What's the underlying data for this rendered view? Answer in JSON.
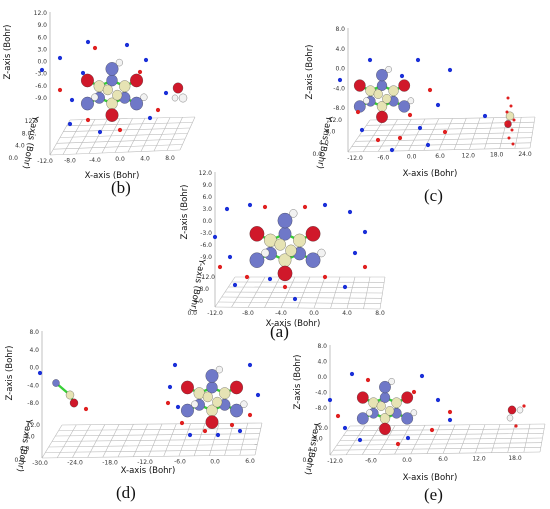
{
  "figure": {
    "panels": [
      {
        "id": "b",
        "caption": "(b)",
        "x_axis_label": "X-axis (Bohr)",
        "y_axis_label": "Y-axis (Bohr)",
        "z_axis_label": "Z-axis (Bohr)",
        "x_ticks": [
          "-12.0",
          "-8.0",
          "-4.0",
          "0.0",
          "4.0",
          "8.0"
        ],
        "y_ticks": [
          "0.0",
          "4.0",
          "8.0",
          "12.0"
        ],
        "z_ticks": [
          "12.0",
          "9.0",
          "6.0",
          "3.0",
          "0.0",
          "-3.0",
          "-6.0",
          "-9.0"
        ]
      },
      {
        "id": "c",
        "caption": "(c)",
        "x_axis_label": "X-axis (Bohr)",
        "y_axis_label": "Y-axis (Bohr)",
        "z_axis_label": "Z-axis (Bohr)",
        "x_ticks": [
          "-12.0",
          "-6.0",
          "0.0",
          "6.0",
          "12.0",
          "18.0",
          "24.0"
        ],
        "y_ticks": [
          "0.0",
          "4.0",
          "8.0",
          "12.0"
        ],
        "z_ticks": [
          "8.0",
          "4.0",
          "0.0",
          "-4.0",
          "-8.0"
        ]
      },
      {
        "id": "a",
        "caption": "(a)",
        "x_axis_label": "X-axis (Bohr)",
        "y_axis_label": "Y-axis (Bohr)",
        "z_axis_label": "Z-axis (Bohr)",
        "x_ticks": [
          "-12.0",
          "-8.0",
          "-4.0",
          "0.0",
          "4.0",
          "8.0"
        ],
        "y_ticks": [
          "0.0",
          "4.0",
          "8.0",
          "12.0"
        ],
        "z_ticks": [
          "12.0",
          "9.0",
          "6.0",
          "3.0",
          "0.0",
          "-3.0",
          "-6.0",
          "-9.0"
        ]
      },
      {
        "id": "d",
        "caption": "(d)",
        "x_axis_label": "X-axis (Bohr)",
        "y_axis_label": "Y-axis (Bohr)",
        "z_axis_label": "Z-axis (Bohr)",
        "x_ticks": [
          "-30.0",
          "-24.0",
          "-18.0",
          "-12.0",
          "-6.0",
          "0.0",
          "6.0"
        ],
        "y_ticks": [
          "0.0",
          "4.0",
          "8.0",
          "12.0"
        ],
        "z_ticks": [
          "8.0",
          "4.0",
          "0.0",
          "-4.0",
          "-8.0"
        ]
      },
      {
        "id": "e",
        "caption": "(e)",
        "x_axis_label": "X-axis (Bohr)",
        "y_axis_label": "Y-axis (Bohr)",
        "z_axis_label": "Z-axis (Bohr)",
        "x_ticks": [
          "-12.0",
          "-6.0",
          "0.0",
          "6.0",
          "12.0",
          "18.0"
        ],
        "y_ticks": [
          "0.0",
          "4.0",
          "8.0",
          "12.0"
        ],
        "z_ticks": [
          "8.0",
          "4.0",
          "0.0",
          "-4.0",
          "-8.0"
        ]
      }
    ],
    "colors": {
      "oxygen": "#d0182a",
      "nitrogen": "#6f78c8",
      "carbon": "#e6e3b4",
      "hydrogen": "#f2f2f2",
      "bond": "#38d038",
      "blue_point": "#1a2fd8",
      "red_point": "#e02020",
      "grid": "#b9b9b9"
    }
  }
}
